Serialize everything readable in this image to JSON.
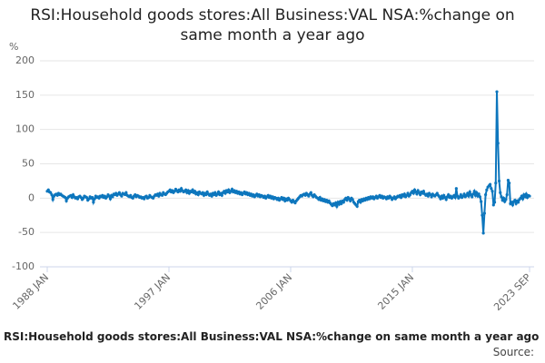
{
  "chart_data": {
    "type": "line",
    "title": "RSI:Household goods stores:All Business:VAL NSA:%change on same month a year ago",
    "footer": "RSI:Household goods stores:All Business:VAL NSA:%change on same month a year ago",
    "source": "Source:",
    "y_label": "%",
    "categories": [
      "1988 JAN",
      null,
      null,
      null,
      null,
      null,
      null,
      null,
      null,
      null,
      null,
      null,
      null,
      null,
      null,
      null,
      null,
      null,
      null,
      null,
      null,
      null,
      null,
      null,
      null,
      null,
      null,
      null,
      null,
      null,
      null,
      null,
      null,
      null,
      null,
      null,
      null,
      null,
      null,
      null,
      null,
      null,
      null,
      null,
      null,
      null,
      null,
      null,
      null,
      null,
      null,
      null,
      null,
      null,
      null,
      null,
      null,
      null,
      null,
      null,
      null,
      null,
      null,
      null,
      null,
      null,
      null,
      null,
      null,
      null,
      null,
      null,
      null,
      null,
      null,
      null,
      null,
      null,
      null,
      null,
      null,
      null,
      null,
      null,
      null,
      null,
      null,
      null,
      null,
      null,
      null,
      null,
      null,
      null,
      null,
      null,
      null,
      null,
      null,
      null,
      null,
      null,
      null,
      null,
      null,
      null,
      null,
      null,
      "1997 JAN",
      null,
      null,
      null,
      null,
      null,
      null,
      null,
      null,
      null,
      null,
      null,
      null,
      null,
      null,
      null,
      null,
      null,
      null,
      null,
      null,
      null,
      null,
      null,
      null,
      null,
      null,
      null,
      null,
      null,
      null,
      null,
      null,
      null,
      null,
      null,
      null,
      null,
      null,
      null,
      null,
      null,
      null,
      null,
      null,
      null,
      null,
      null,
      null,
      null,
      null,
      null,
      null,
      null,
      null,
      null,
      null,
      null,
      null,
      null,
      null,
      null,
      null,
      null,
      null,
      null,
      null,
      null,
      null,
      null,
      null,
      null,
      null,
      null,
      null,
      null,
      null,
      null,
      null,
      null,
      null,
      null,
      null,
      null,
      null,
      null,
      null,
      null,
      null,
      null,
      null,
      null,
      null,
      null,
      null,
      null,
      null,
      null,
      null,
      null,
      null,
      null,
      null,
      null,
      null,
      null,
      null,
      null,
      "2006 JAN",
      null,
      null,
      null,
      null,
      null,
      null,
      null,
      null,
      null,
      null,
      null,
      null,
      null,
      null,
      null,
      null,
      null,
      null,
      null,
      null,
      null,
      null,
      null,
      null,
      null,
      null,
      null,
      null,
      null,
      null,
      null,
      null,
      null,
      null,
      null,
      null,
      null,
      null,
      null,
      null,
      null,
      null,
      null,
      null,
      null,
      null,
      null,
      null,
      null,
      null,
      null,
      null,
      null,
      null,
      null,
      null,
      null,
      null,
      null,
      null,
      null,
      null,
      null,
      null,
      null,
      null,
      null,
      null,
      null,
      null,
      null,
      null,
      null,
      null,
      null,
      null,
      null,
      null,
      null,
      null,
      null,
      null,
      null,
      null,
      null,
      null,
      null,
      null,
      null,
      null,
      null,
      null,
      null,
      null,
      null,
      null,
      null,
      null,
      null,
      null,
      null,
      null,
      null,
      null,
      null,
      null,
      null,
      "2015 JAN",
      null,
      null,
      null,
      null,
      null,
      null,
      null,
      null,
      null,
      null,
      null,
      null,
      null,
      null,
      null,
      null,
      null,
      null,
      null,
      null,
      null,
      null,
      null,
      null,
      null,
      null,
      null,
      null,
      null,
      null,
      null,
      null,
      null,
      null,
      null,
      null,
      null,
      null,
      null,
      null,
      null,
      null,
      null,
      null,
      null,
      null,
      null,
      null,
      null,
      null,
      null,
      null,
      null,
      null,
      null,
      null,
      null,
      null,
      null,
      null,
      null,
      null,
      null,
      null,
      null,
      null,
      null,
      null,
      null,
      null,
      null,
      null,
      null,
      null,
      null,
      null,
      null,
      null,
      null,
      null,
      null,
      null,
      null,
      null,
      null,
      null,
      null,
      null,
      null,
      null,
      null,
      null,
      null,
      null,
      null,
      null,
      null,
      null,
      null,
      null,
      null,
      null,
      null,
      "2023 SEP"
    ],
    "series": [
      {
        "name": "RSI:Household goods stores:All Business:VAL NSA:%change on same month a year ago",
        "color": "#0d76bd",
        "values": [
          10,
          12,
          9,
          8,
          5,
          -2,
          3,
          5,
          6,
          4,
          7,
          5,
          6,
          4,
          3,
          2,
          1,
          -4,
          0,
          2,
          3,
          4,
          1,
          5,
          2,
          0,
          1,
          -1,
          2,
          3,
          1,
          -2,
          0,
          3,
          2,
          1,
          -3,
          -1,
          2,
          0,
          1,
          -6,
          -1,
          3,
          1,
          2,
          0,
          3,
          2,
          4,
          1,
          3,
          0,
          2,
          5,
          3,
          -1,
          4,
          2,
          6,
          5,
          7,
          4,
          6,
          8,
          5,
          3,
          7,
          6,
          5,
          8,
          4,
          3,
          2,
          4,
          1,
          0,
          3,
          5,
          2,
          4,
          3,
          1,
          2,
          0,
          1,
          -1,
          2,
          3,
          0,
          1,
          4,
          2,
          1,
          0,
          3,
          5,
          4,
          6,
          3,
          7,
          5,
          4,
          8,
          6,
          5,
          7,
          9,
          10,
          12,
          9,
          11,
          8,
          10,
          13,
          11,
          9,
          12,
          10,
          14,
          11,
          9,
          10,
          12,
          8,
          11,
          7,
          10,
          9,
          12,
          8,
          10,
          6,
          8,
          5,
          9,
          7,
          6,
          8,
          4,
          7,
          5,
          9,
          6,
          4,
          6,
          3,
          7,
          5,
          8,
          4,
          6,
          9,
          5,
          7,
          4,
          8,
          10,
          7,
          11,
          9,
          12,
          8,
          10,
          13,
          9,
          11,
          8,
          10,
          7,
          9,
          6,
          8,
          5,
          7,
          9,
          6,
          8,
          5,
          7,
          4,
          6,
          3,
          5,
          2,
          4,
          6,
          3,
          5,
          2,
          4,
          3,
          1,
          3,
          0,
          2,
          4,
          1,
          3,
          0,
          2,
          -1,
          1,
          0,
          -2,
          0,
          -3,
          -1,
          1,
          -2,
          0,
          -4,
          -1,
          -3,
          0,
          -2,
          -4,
          -6,
          -3,
          -5,
          -7,
          -4,
          -2,
          0,
          2,
          4,
          3,
          5,
          6,
          4,
          7,
          5,
          3,
          6,
          8,
          4,
          2,
          5,
          3,
          1,
          0,
          -2,
          1,
          -3,
          -1,
          -4,
          -2,
          -5,
          -3,
          -6,
          -4,
          -7,
          -9,
          -11,
          -8,
          -10,
          -7,
          -12,
          -6,
          -9,
          -5,
          -8,
          -4,
          -6,
          -2,
          0,
          -3,
          1,
          -1,
          -4,
          0,
          -2,
          -6,
          -8,
          -10,
          -12,
          -5,
          -3,
          -6,
          -2,
          -4,
          -1,
          -3,
          0,
          -2,
          1,
          -1,
          2,
          0,
          2,
          -1,
          1,
          3,
          0,
          2,
          4,
          1,
          3,
          0,
          2,
          1,
          -1,
          2,
          0,
          3,
          1,
          -2,
          0,
          2,
          -1,
          1,
          3,
          2,
          4,
          1,
          5,
          3,
          6,
          2,
          4,
          7,
          3,
          5,
          8,
          10,
          7,
          12,
          9,
          6,
          11,
          8,
          5,
          9,
          7,
          10,
          6,
          4,
          6,
          3,
          7,
          5,
          2,
          6,
          4,
          3,
          5,
          7,
          4,
          2,
          -1,
          3,
          0,
          4,
          1,
          -2,
          2,
          5,
          1,
          3,
          0,
          2,
          4,
          1,
          14,
          3,
          0,
          2,
          5,
          1,
          3,
          6,
          2,
          4,
          7,
          3,
          9,
          5,
          2,
          6,
          10,
          4,
          8,
          3,
          6,
          2,
          -5,
          -25,
          -51,
          -22,
          5,
          12,
          16,
          18,
          20,
          14,
          10,
          -10,
          -6,
          22,
          155,
          80,
          25,
          8,
          2,
          -3,
          0,
          -5,
          -2,
          5,
          26,
          22,
          -8,
          -6,
          -10,
          -5,
          -3,
          -8,
          -4,
          -6,
          -2,
          0,
          3,
          -1,
          5,
          2,
          6,
          1,
          4,
          3
        ]
      }
    ],
    "ylim": [
      -100,
      200
    ],
    "yticks": [
      -100,
      -50,
      0,
      50,
      100,
      150,
      200
    ],
    "grid": true
  }
}
